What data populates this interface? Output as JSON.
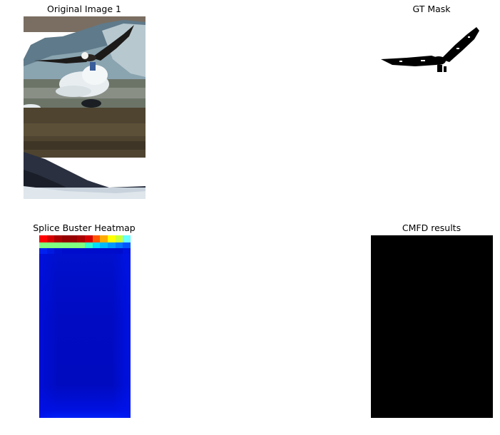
{
  "panels": {
    "original": {
      "title": "Original Image 1",
      "image": "eagle-over-water-photo"
    },
    "gt_mask": {
      "title": "GT Mask",
      "image": "eagle-silhouette-mask"
    },
    "heatmap": {
      "title": "Splice Buster Heatmap",
      "colormap": "jet"
    },
    "cmfd": {
      "title": "CMFD results",
      "fill_color": "#000000"
    }
  },
  "heatmap_grid": [
    [
      "#ff0000",
      "#d40000",
      "#aa0000",
      "#960000",
      "#960000",
      "#aa0000",
      "#d40000",
      "#ff5500",
      "#ffaa00",
      "#ffff00",
      "#ccff33",
      "#66ffff"
    ],
    [
      "#80ff80",
      "#80ff80",
      "#80ff80",
      "#80ff80",
      "#80ff80",
      "#80ff80",
      "#33ffcc",
      "#00ddff",
      "#00bbff",
      "#0099ff",
      "#0077ff",
      "#0055ff"
    ],
    [
      "#0020f0",
      "#0018e0",
      "#0010d0",
      "#000ccc",
      "#000ccc",
      "#000ccc",
      "#000ccc",
      "#000ccc",
      "#000ccc",
      "#000ccc",
      "#000ccc",
      "#0010dd"
    ]
  ]
}
